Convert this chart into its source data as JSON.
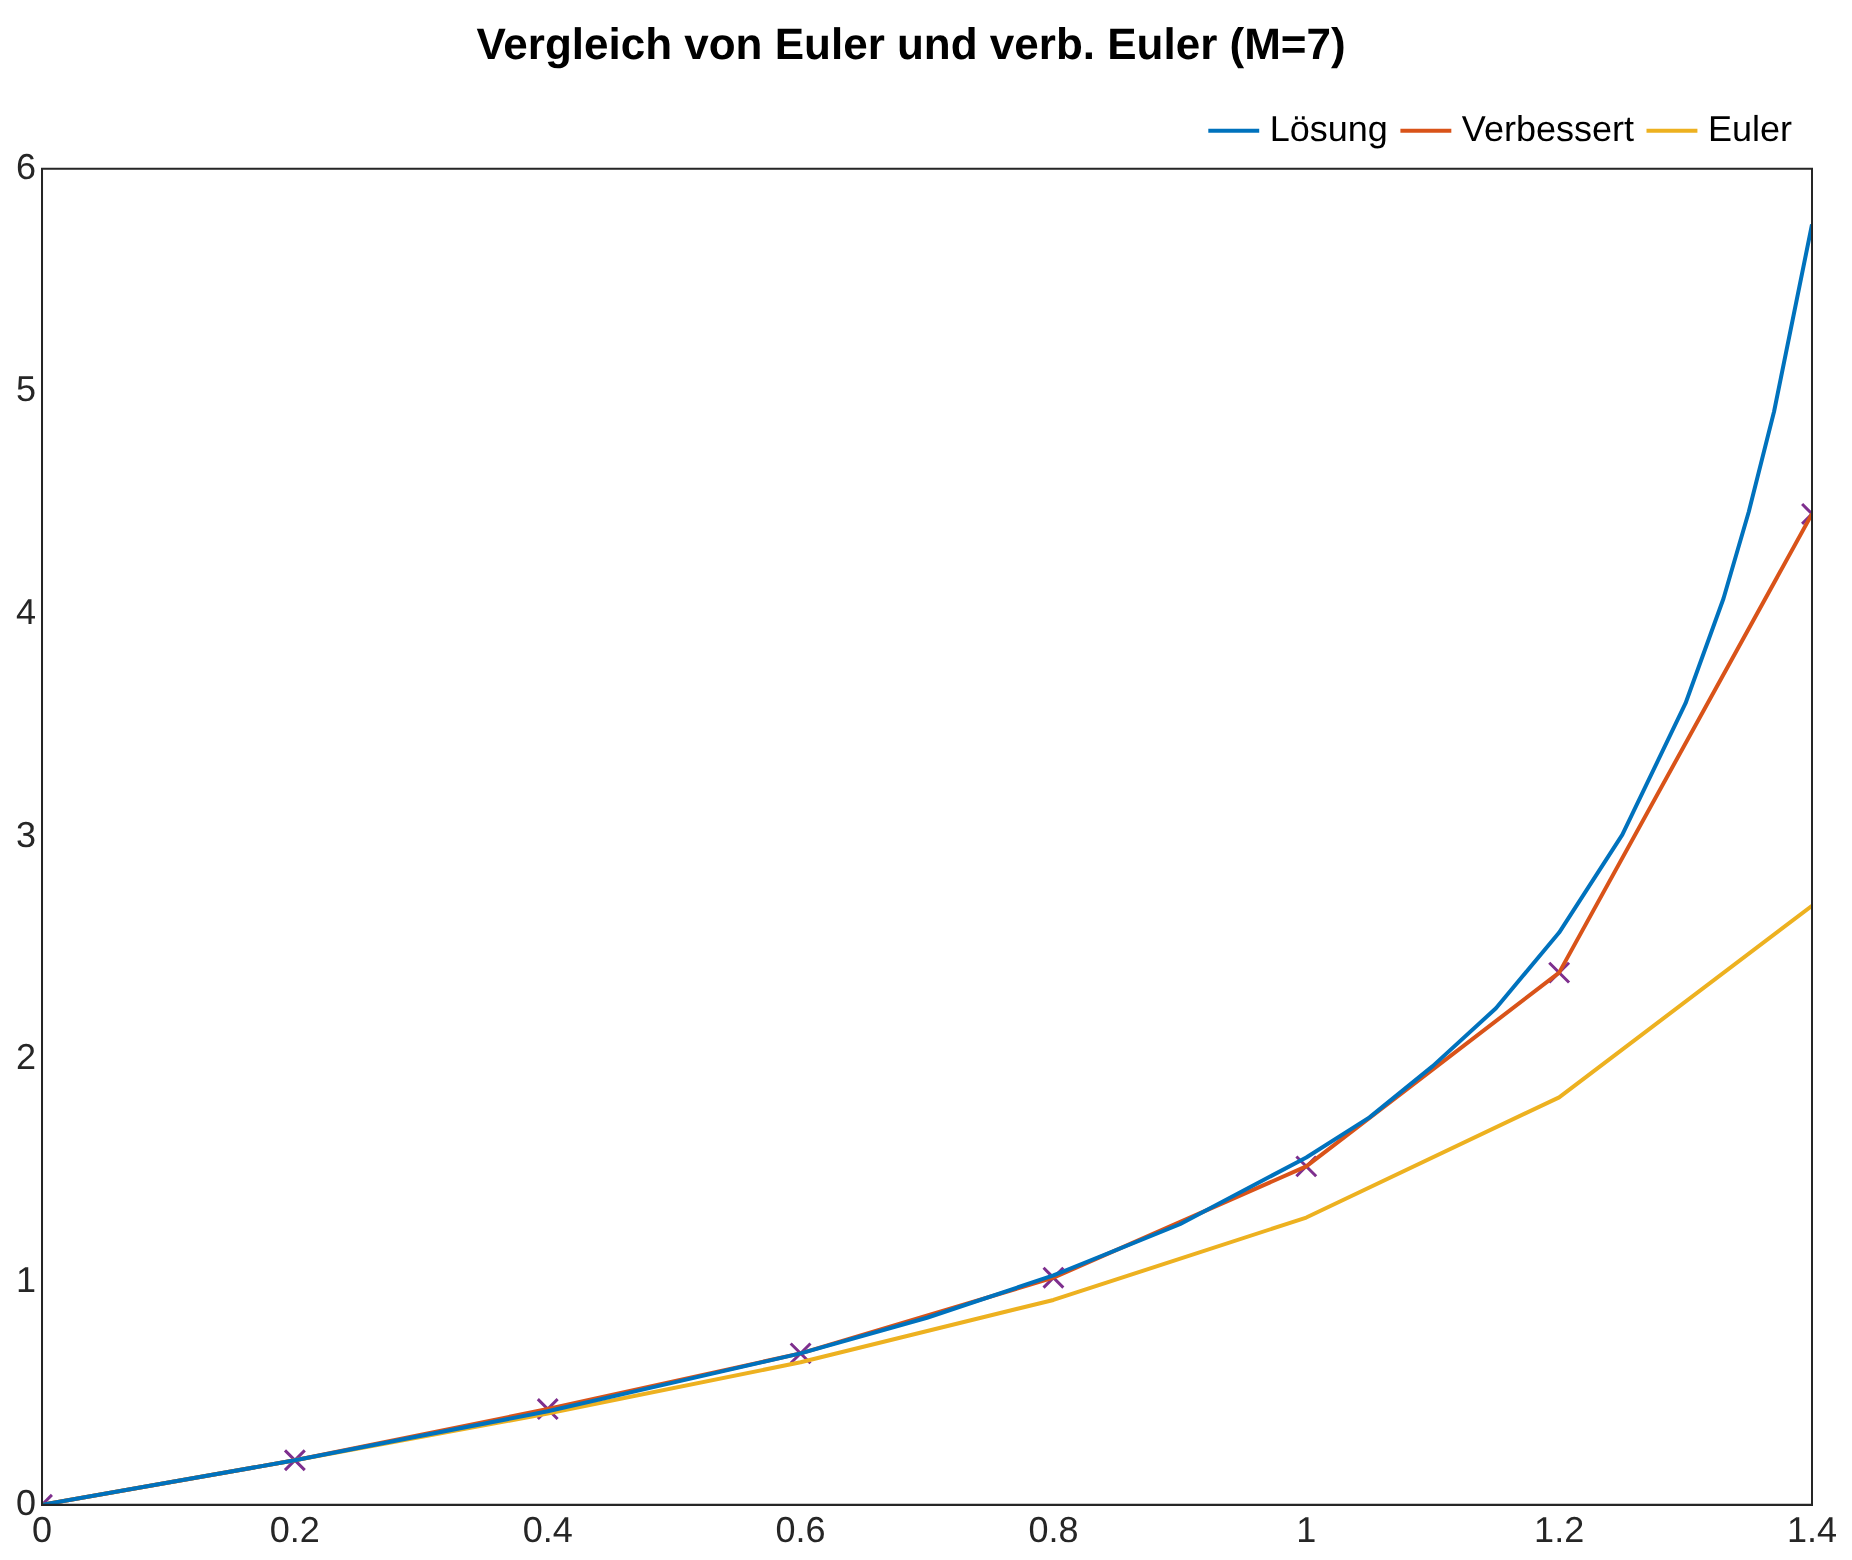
{
  "chart_data": {
    "type": "line",
    "title": "Vergleich von Euler und verb. Euler (M=7)",
    "xlim": [
      0,
      1.4
    ],
    "xticks": [
      0,
      0.2,
      0.4,
      0.6,
      0.8,
      1,
      1.2,
      1.4
    ],
    "ylim": [
      0,
      6
    ],
    "yticks": [
      0,
      1,
      2,
      3,
      4,
      5,
      6
    ],
    "grid": false,
    "legend": "top right",
    "line_style": "solid",
    "series": [
      {
        "name": "Lösung",
        "color": "#0072bd",
        "x": [
          0,
          0.1,
          0.2,
          0.3,
          0.4,
          0.5,
          0.6,
          0.7,
          0.8,
          0.9,
          1,
          1.05,
          1.1,
          1.15,
          1.2,
          1.25,
          1.3,
          1.33,
          1.35,
          1.37,
          1.4
        ],
        "values": [
          0,
          0.1,
          0.2,
          0.31,
          0.42,
          0.55,
          0.68,
          0.84,
          1.03,
          1.26,
          1.56,
          1.74,
          1.97,
          2.23,
          2.57,
          3.01,
          3.6,
          4.07,
          4.46,
          4.91,
          5.75
        ]
      },
      {
        "name": "Verbessert",
        "color": "#d95319",
        "x": [
          0,
          0.2,
          0.4,
          0.6,
          0.8,
          1,
          1.2,
          1.4
        ],
        "values": [
          0,
          0.2,
          0.43,
          0.68,
          1.02,
          1.52,
          2.39,
          4.45
        ]
      },
      {
        "name": "Euler",
        "color": "#edb120",
        "x": [
          0,
          0.2,
          0.4,
          0.6,
          0.8,
          1,
          1.2,
          1.4
        ],
        "values": [
          0,
          0.2,
          0.41,
          0.64,
          0.92,
          1.29,
          1.83,
          2.69
        ]
      },
      {
        "type": "scatter",
        "marker": "cross",
        "color": "#7e2f8e",
        "x": [
          0,
          0.2,
          0.4,
          0.6,
          0.8,
          1,
          1.2,
          1.4
        ],
        "values": [
          0,
          0.2,
          0.43,
          0.68,
          1.02,
          1.52,
          2.39,
          4.45
        ]
      }
    ]
  }
}
